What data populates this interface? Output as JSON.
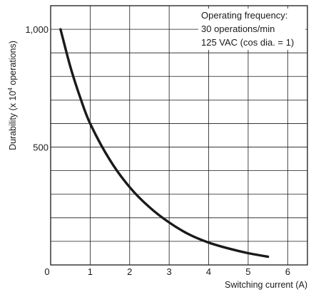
{
  "chart_data": {
    "type": "line",
    "title": "",
    "xlabel": "Switching current (A)",
    "ylabel_main": "Durability (x 10",
    "ylabel_exp": "4",
    "ylabel_tail": " operations)",
    "xlim": [
      0,
      6.5
    ],
    "ylim": [
      0,
      1100
    ],
    "x_ticks": [
      {
        "value": 0,
        "label": "0"
      },
      {
        "value": 1,
        "label": "1"
      },
      {
        "value": 2,
        "label": "2"
      },
      {
        "value": 3,
        "label": "3"
      },
      {
        "value": 4,
        "label": "4"
      },
      {
        "value": 5,
        "label": "5"
      },
      {
        "value": 6,
        "label": "6"
      }
    ],
    "y_ticks": [
      {
        "value": 500,
        "label": "500"
      },
      {
        "value": 1000,
        "label": "1,000"
      }
    ],
    "x_grid_step": 1,
    "y_grid_step": 100,
    "grid": true,
    "annotations": [
      "Operating frequency:",
      "30 operations/min",
      "125 VAC (cos dia. = 1)"
    ],
    "annotation_placement": "top-right",
    "series": [
      {
        "color": "#1a1a1a",
        "x": [
          0.25,
          0.5,
          0.75,
          1.0,
          1.5,
          2.0,
          2.5,
          3.0,
          3.5,
          4.0,
          4.5,
          5.0,
          5.5
        ],
        "y": [
          1000,
          840,
          710,
          600,
          445,
          330,
          245,
          180,
          130,
          95,
          70,
          50,
          35
        ]
      }
    ]
  }
}
